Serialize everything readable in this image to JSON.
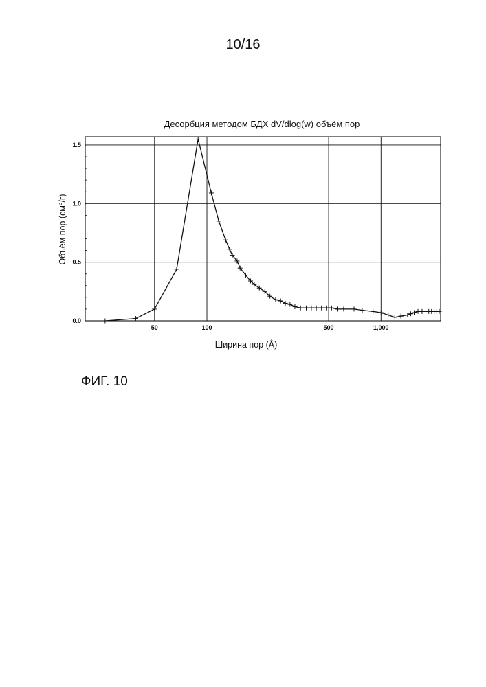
{
  "page": {
    "number": "10/16",
    "figure_label": "ФИГ. 10"
  },
  "chart_data": {
    "type": "line",
    "title": "Десорбция методом БДХ dV/dlog(w) объём пор",
    "xlabel": "Ширина пор (Å)",
    "ylabel_main": "Объём пор (см",
    "ylabel_sup": "3",
    "ylabel_tail": "/г)",
    "x_scale": "log",
    "xlim": [
      20,
      2200
    ],
    "ylim": [
      0,
      1.57
    ],
    "grid": true,
    "x_ticks": [
      {
        "value": 50,
        "label": "50"
      },
      {
        "value": 100,
        "label": "100"
      },
      {
        "value": 500,
        "label": "500"
      },
      {
        "value": 1000,
        "label": "1,000"
      }
    ],
    "y_ticks": [
      {
        "value": 0.0,
        "label": "0.0"
      },
      {
        "value": 0.5,
        "label": "0.5"
      },
      {
        "value": 1.0,
        "label": "1.0"
      },
      {
        "value": 1.5,
        "label": "1.5"
      }
    ],
    "series": [
      {
        "marker": "plus",
        "x": [
          26,
          39,
          50,
          67,
          89,
          106,
          117,
          128,
          135,
          140,
          149,
          155,
          167,
          178,
          187,
          200,
          215,
          230,
          248,
          265,
          282,
          300,
          320,
          345,
          372,
          398,
          425,
          455,
          485,
          520,
          560,
          610,
          700,
          780,
          900,
          1000,
          1100,
          1200,
          1300,
          1420,
          1480,
          1550,
          1630,
          1720,
          1810,
          1880,
          1950,
          2020,
          2090,
          2160
        ],
        "y": [
          0.0,
          0.02,
          0.1,
          0.44,
          1.55,
          1.09,
          0.85,
          0.69,
          0.61,
          0.56,
          0.51,
          0.45,
          0.39,
          0.34,
          0.31,
          0.28,
          0.25,
          0.21,
          0.18,
          0.17,
          0.15,
          0.14,
          0.12,
          0.11,
          0.11,
          0.11,
          0.11,
          0.11,
          0.11,
          0.11,
          0.1,
          0.1,
          0.1,
          0.09,
          0.08,
          0.07,
          0.05,
          0.03,
          0.04,
          0.05,
          0.06,
          0.07,
          0.08,
          0.08,
          0.08,
          0.08,
          0.08,
          0.08,
          0.08,
          0.08
        ]
      }
    ],
    "line_color": "#111111"
  }
}
